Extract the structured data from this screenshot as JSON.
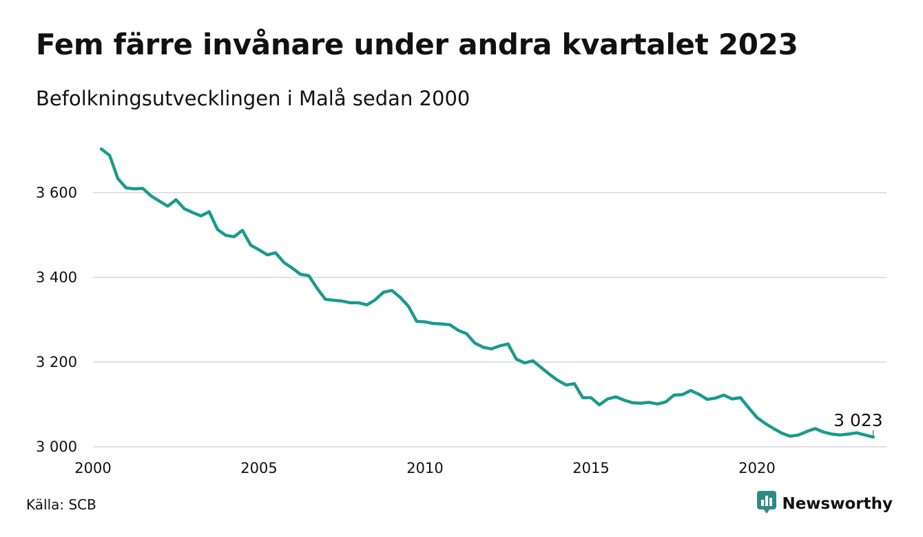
{
  "title": "Fem färre invånare under andra kvartalet 2023",
  "subtitle": "Befolkningsutvecklingen i Malå sedan 2000",
  "source": "Källa: SCB",
  "brand": {
    "name": "Newsworthy",
    "icon": "bar-chart-speech-bubble-icon"
  },
  "colors": {
    "line": "#1a9a8c",
    "grid": "#d6d6dc",
    "brand": "#2e8b84",
    "text": "#111111"
  },
  "chart_data": {
    "type": "line",
    "title": "Fem färre invånare under andra kvartalet 2023",
    "subtitle": "Befolkningsutvecklingen i Malå sedan 2000",
    "x_unit": "year (quarterly data)",
    "x": [
      2000.25,
      2000.5,
      2000.75,
      2001,
      2001.25,
      2001.5,
      2001.75,
      2002,
      2002.25,
      2002.5,
      2002.75,
      2003,
      2003.25,
      2003.5,
      2003.75,
      2004,
      2004.25,
      2004.5,
      2004.75,
      2005,
      2005.25,
      2005.5,
      2005.75,
      2006,
      2006.25,
      2006.5,
      2006.75,
      2007,
      2007.25,
      2007.5,
      2007.75,
      2008,
      2008.25,
      2008.5,
      2008.75,
      2009,
      2009.25,
      2009.5,
      2009.75,
      2010,
      2010.25,
      2010.5,
      2010.75,
      2011,
      2011.25,
      2011.5,
      2011.75,
      2012,
      2012.25,
      2012.5,
      2012.75,
      2013,
      2013.25,
      2013.5,
      2013.75,
      2014,
      2014.25,
      2014.5,
      2014.75,
      2015,
      2015.25,
      2015.5,
      2015.75,
      2016,
      2016.25,
      2016.5,
      2016.75,
      2017,
      2017.25,
      2017.5,
      2017.75,
      2018,
      2018.25,
      2018.5,
      2018.75,
      2019,
      2019.25,
      2019.5,
      2019.75,
      2020,
      2020.25,
      2020.5,
      2020.75,
      2021,
      2021.25,
      2021.5,
      2021.75,
      2022,
      2022.25,
      2022.5,
      2022.75,
      2023,
      2023.25,
      2023.5
    ],
    "y": [
      3703,
      3688,
      3633,
      3611,
      3609,
      3610,
      3592,
      3580,
      3568,
      3583,
      3562,
      3553,
      3545,
      3555,
      3513,
      3499,
      3496,
      3511,
      3476,
      3465,
      3453,
      3458,
      3435,
      3422,
      3407,
      3404,
      3374,
      3348,
      3346,
      3344,
      3340,
      3340,
      3335,
      3347,
      3365,
      3369,
      3353,
      3332,
      3296,
      3295,
      3291,
      3290,
      3288,
      3275,
      3267,
      3245,
      3235,
      3231,
      3238,
      3243,
      3207,
      3198,
      3203,
      3187,
      3171,
      3157,
      3146,
      3149,
      3116,
      3116,
      3099,
      3113,
      3118,
      3110,
      3104,
      3103,
      3105,
      3101,
      3106,
      3122,
      3123,
      3133,
      3124,
      3112,
      3115,
      3122,
      3113,
      3116,
      3092,
      3069,
      3055,
      3043,
      3032,
      3025,
      3028,
      3036,
      3043,
      3035,
      3030,
      3028,
      3030,
      3033,
      3028,
      3023
    ],
    "series_color": "#1a9a8c",
    "xlim": [
      2000,
      2023.9
    ],
    "ylim": [
      3000,
      3715
    ],
    "x_ticks": [
      2000,
      2005,
      2010,
      2015,
      2020
    ],
    "x_tick_labels": [
      "2000",
      "2005",
      "2010",
      "2015",
      "2020"
    ],
    "y_ticks": [
      3000,
      3200,
      3400,
      3600
    ],
    "y_tick_labels": [
      "3 000",
      "3 200",
      "3 400",
      "3 600"
    ],
    "grid": "horizontal",
    "end_label": "3 023"
  }
}
